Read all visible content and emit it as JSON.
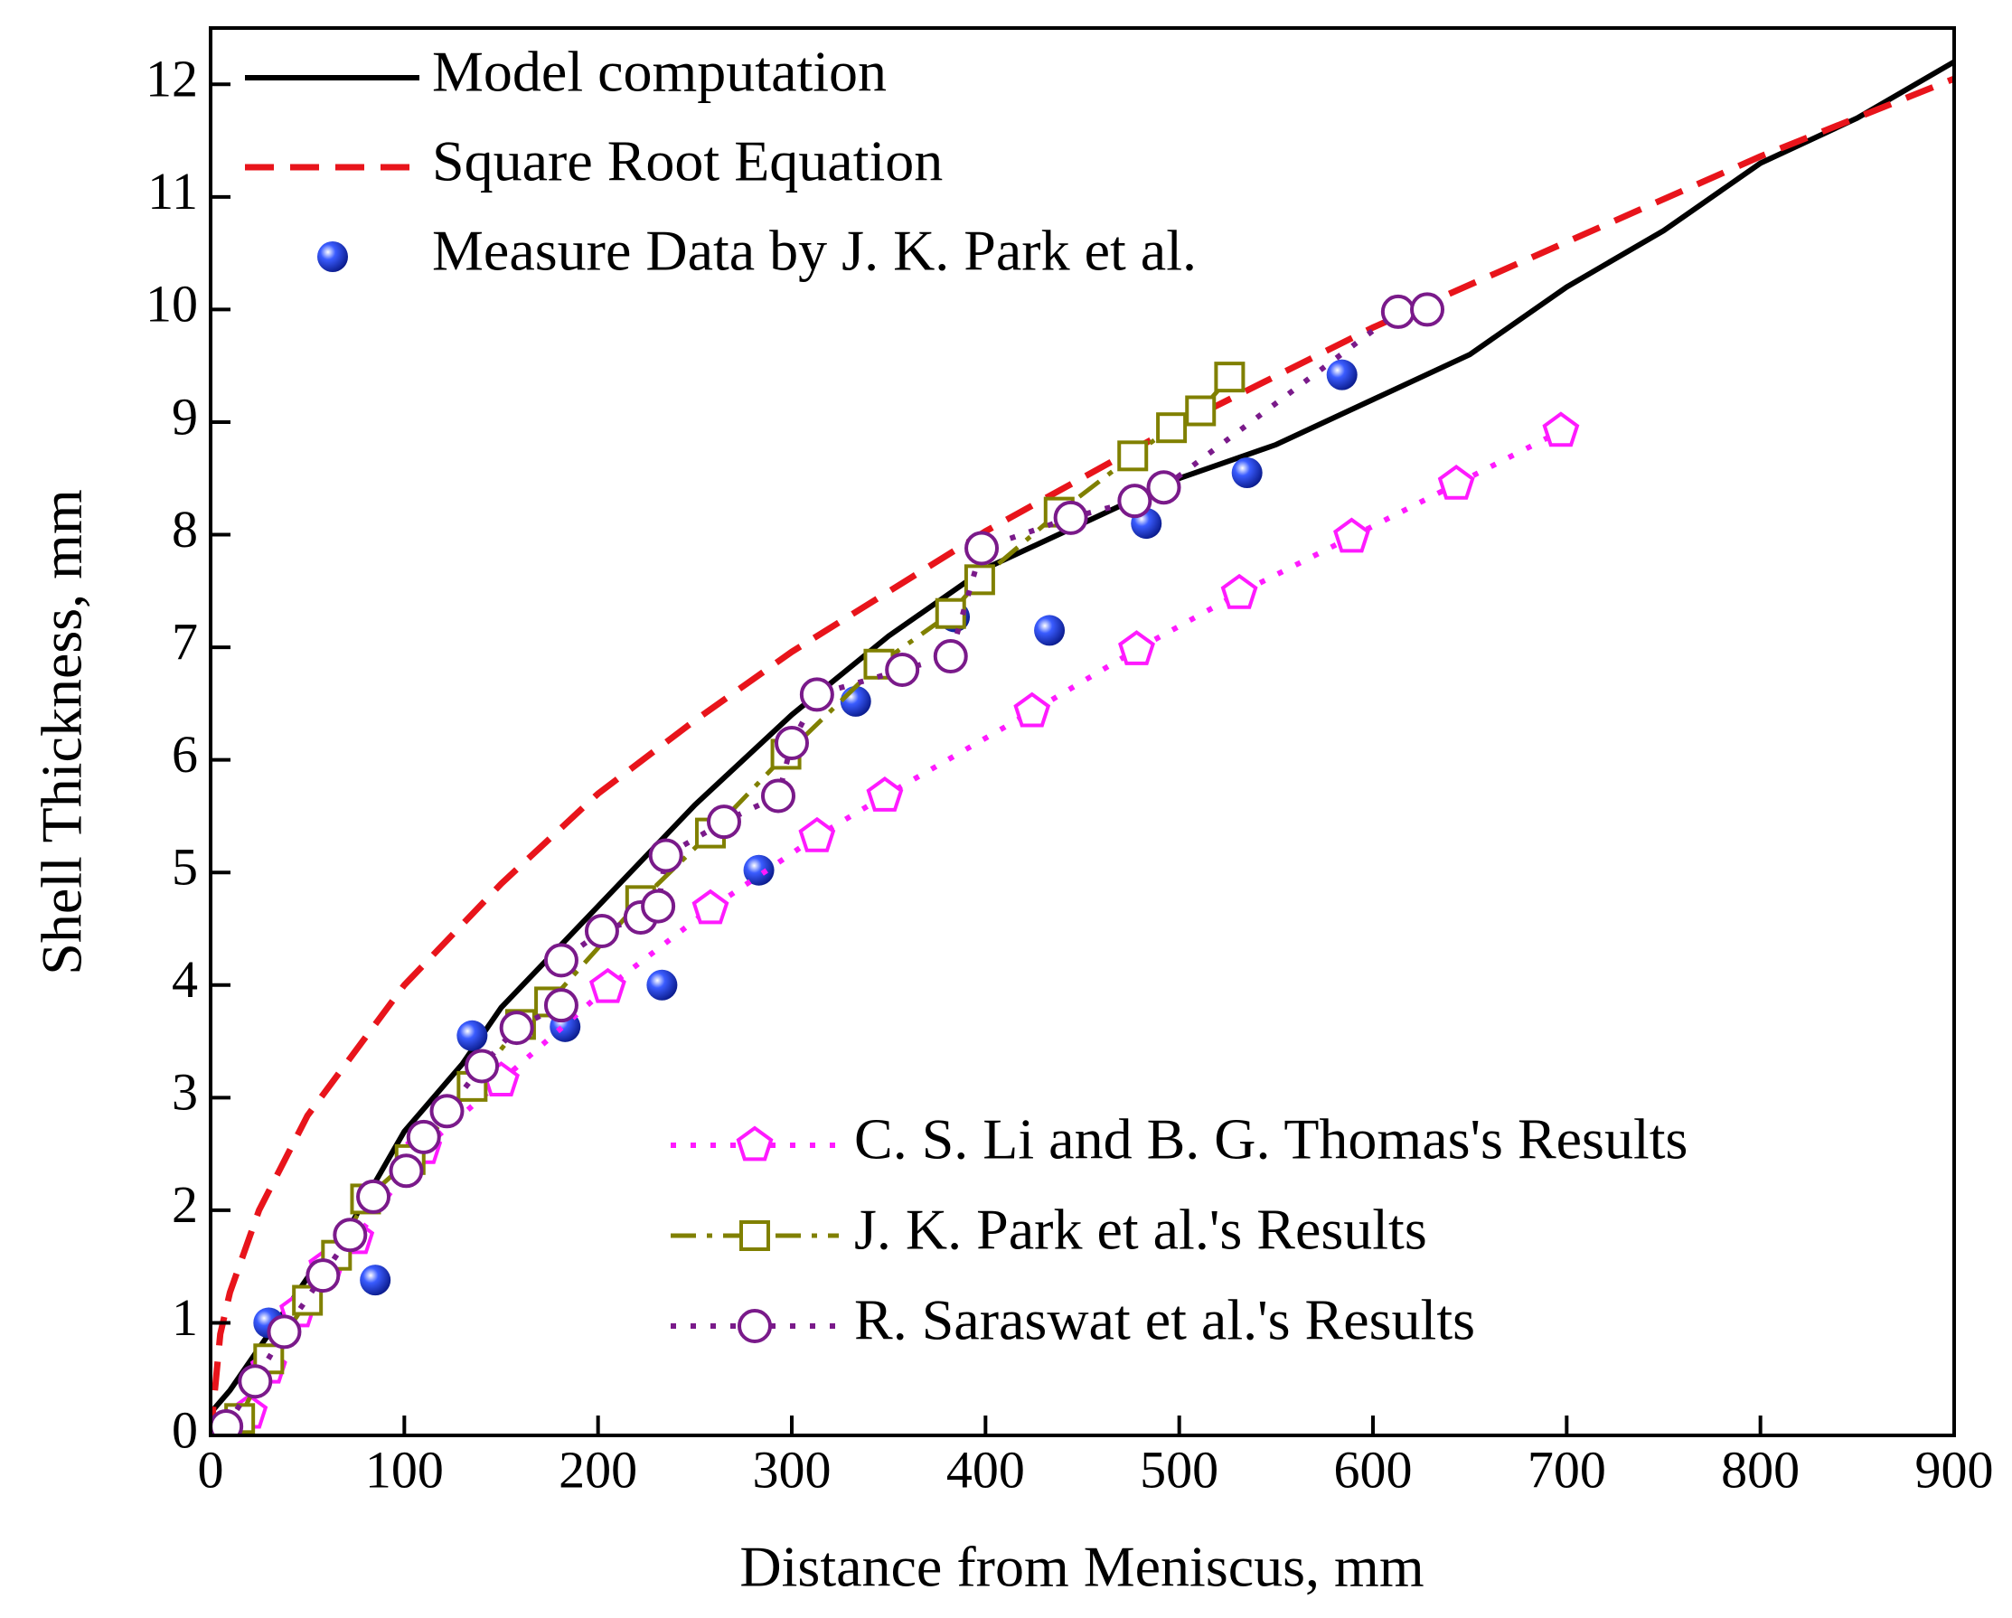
{
  "chart_data": {
    "type": "line",
    "xlabel": "Distance from Meniscus, mm",
    "ylabel": "Shell Thickness, mm",
    "xlim": [
      0,
      900
    ],
    "ylim": [
      0,
      12.5
    ],
    "xticks": [
      0,
      100,
      200,
      300,
      400,
      500,
      600,
      700,
      800,
      900
    ],
    "yticks": [
      0,
      1,
      2,
      3,
      4,
      5,
      6,
      7,
      8,
      9,
      10,
      11,
      12
    ],
    "series": [
      {
        "name": "Model computation",
        "color": "#000000",
        "line": "solid",
        "marker": "none",
        "x": [
          0,
          10,
          30,
          50,
          70,
          100,
          130,
          150,
          200,
          250,
          300,
          350,
          400,
          450,
          500,
          550,
          600,
          650,
          700,
          750,
          800,
          850,
          900
        ],
        "values": [
          0.2,
          0.4,
          0.9,
          1.4,
          1.8,
          2.7,
          3.3,
          3.8,
          4.7,
          5.6,
          6.4,
          7.1,
          7.7,
          8.1,
          8.5,
          8.8,
          9.2,
          9.6,
          10.2,
          10.7,
          11.3,
          11.7,
          12.2
        ]
      },
      {
        "name": "Square Root Equation",
        "color": "#e8141b",
        "line": "dashed",
        "marker": "none",
        "x": [
          0,
          5,
          10,
          25,
          50,
          100,
          150,
          200,
          250,
          300,
          400,
          500,
          600,
          700,
          800,
          900
        ],
        "values": [
          0,
          0.9,
          1.27,
          2.0,
          2.84,
          4.0,
          4.9,
          5.7,
          6.35,
          6.96,
          8.03,
          8.98,
          9.84,
          10.6,
          11.36,
          12.05
        ]
      },
      {
        "name": "Measure Data by J. K. Park et al.",
        "color": "#1030d8",
        "line": "none",
        "marker": "ball",
        "x": [
          30,
          85,
          135,
          183,
          233,
          283,
          333,
          384,
          433,
          483,
          535,
          584
        ],
        "values": [
          1.0,
          1.38,
          3.55,
          3.63,
          4.0,
          5.02,
          6.52,
          7.27,
          7.15,
          8.1,
          8.55,
          9.42
        ]
      },
      {
        "name": "C. S. Li and B. G. Thomas's Results",
        "color": "#ff1aff",
        "line": "dotted",
        "marker": "pentagon",
        "x": [
          20,
          30,
          45,
          60,
          75,
          110,
          150,
          205,
          258,
          313,
          348,
          424,
          478,
          531,
          589,
          643,
          697
        ],
        "values": [
          0.2,
          0.6,
          1.1,
          1.5,
          1.75,
          2.55,
          3.15,
          3.98,
          4.68,
          5.32,
          5.68,
          6.43,
          6.98,
          7.48,
          7.98,
          8.45,
          8.92
        ]
      },
      {
        "name": "J. K. Park et al.'s Results",
        "color": "#808000",
        "line": "dashdot",
        "marker": "square",
        "x": [
          15,
          30,
          50,
          65,
          80,
          103,
          135,
          160,
          175,
          222,
          258,
          297,
          345,
          382,
          397,
          438,
          476,
          496,
          511,
          526
        ],
        "values": [
          0.15,
          0.68,
          1.2,
          1.6,
          2.1,
          2.45,
          3.1,
          3.65,
          3.85,
          4.75,
          5.35,
          6.05,
          6.85,
          7.3,
          7.6,
          8.2,
          8.7,
          8.95,
          9.1,
          9.4
        ]
      },
      {
        "name": "R. Saraswat et al.'s Results",
        "color": "#7a1a8a",
        "line": "dotted",
        "marker": "circle",
        "x": [
          8,
          23,
          38,
          58,
          72,
          84,
          101,
          110,
          122,
          140,
          158,
          181,
          181,
          202,
          222,
          231,
          235,
          265,
          293,
          300,
          313,
          357,
          382,
          398,
          444,
          477,
          492,
          613,
          628
        ],
        "values": [
          0.08,
          0.48,
          0.92,
          1.42,
          1.78,
          2.12,
          2.35,
          2.65,
          2.88,
          3.28,
          3.62,
          3.82,
          4.22,
          4.48,
          4.6,
          4.7,
          5.15,
          5.45,
          5.68,
          6.15,
          6.58,
          6.8,
          6.92,
          7.88,
          8.15,
          8.3,
          8.42,
          9.98,
          10.0
        ]
      }
    ]
  }
}
